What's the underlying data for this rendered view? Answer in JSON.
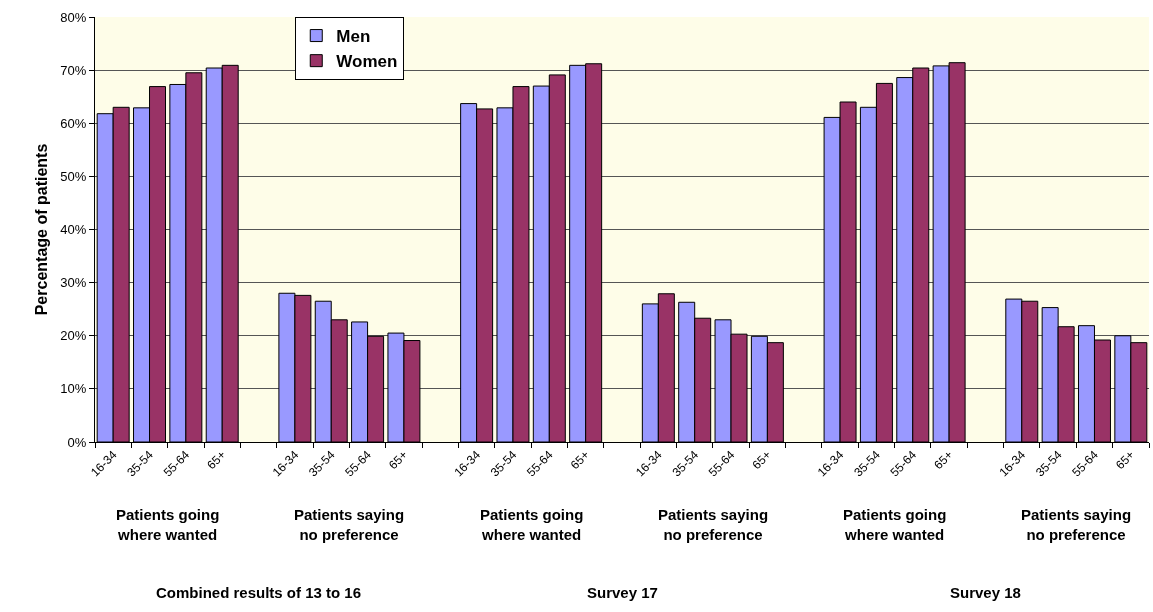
{
  "chart_data": {
    "type": "bar",
    "ylabel": "Percentage of patients",
    "categories": [
      "16-34",
      "35-54",
      "55-64",
      "65+",
      null,
      "16-34",
      "35-54",
      "55-64",
      "65+",
      null,
      "16-34",
      "35-54",
      "55-64",
      "65+",
      null,
      "16-34",
      "35-54",
      "55-64",
      "65+",
      null,
      "16-34",
      "35-54",
      "55-64",
      "65+",
      null,
      "16-34",
      "35-54",
      "55-64",
      "65+"
    ],
    "series": [
      {
        "name": "Men",
        "color": "#9999ff",
        "values": [
          61.8,
          62.9,
          67.3,
          70.4,
          null,
          28.0,
          26.5,
          22.6,
          20.5,
          null,
          63.7,
          62.9,
          67.0,
          70.9,
          null,
          26.0,
          26.3,
          23.0,
          19.9,
          null,
          61.1,
          63.0,
          68.6,
          70.8,
          null,
          26.9,
          25.3,
          21.9,
          20.0
        ]
      },
      {
        "name": "Women",
        "color": "#993366",
        "values": [
          63.0,
          66.9,
          69.5,
          70.9,
          null,
          27.6,
          23.0,
          19.9,
          19.1,
          null,
          62.7,
          66.9,
          69.1,
          71.2,
          null,
          27.9,
          23.3,
          20.3,
          18.7,
          null,
          64.0,
          67.5,
          70.4,
          71.4,
          null,
          26.5,
          21.7,
          19.2,
          18.7
        ]
      }
    ],
    "ylim": [
      0,
      80
    ],
    "yticks": [
      {
        "value": 0,
        "label": "0%"
      },
      {
        "value": 10,
        "label": "10%"
      },
      {
        "value": 20,
        "label": "20%"
      },
      {
        "value": 30,
        "label": "30%"
      },
      {
        "value": 40,
        "label": "40%"
      },
      {
        "value": 50,
        "label": "50%"
      },
      {
        "value": 60,
        "label": "60%"
      },
      {
        "value": 70,
        "label": "70%"
      },
      {
        "value": 80,
        "label": "80%"
      }
    ],
    "grid": "y",
    "legend": "top left",
    "annotations": [
      "Patients going where wanted",
      "Patients saying no preference",
      "Patients going where wanted",
      "Patients saying no preference",
      "Patients going where wanted",
      "Patients saying no preference",
      "Combined results of 13 to 16",
      "Survey 17",
      "Survey 18"
    ]
  }
}
